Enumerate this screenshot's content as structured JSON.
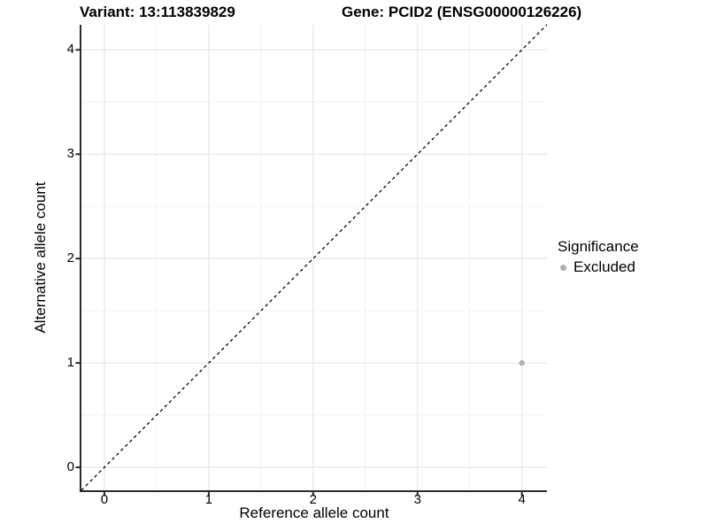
{
  "header": {
    "variant_title": "Variant: 13:113839829",
    "gene_title": "Gene: PCID2 (ENSG00000126226)"
  },
  "chart_data": {
    "type": "scatter",
    "xlabel": "Reference allele count",
    "ylabel": "Alternative allele count",
    "xlim": [
      -0.22,
      4.24
    ],
    "ylim": [
      -0.22,
      4.24
    ],
    "xticks": [
      0,
      1,
      2,
      3,
      4
    ],
    "yticks": [
      0,
      1,
      2,
      3,
      4
    ],
    "xticks_minor": [
      0.5,
      1.5,
      2.5,
      3.5
    ],
    "yticks_minor": [
      0.5,
      1.5,
      2.5,
      3.5
    ],
    "grid": "major and minor gridlines on",
    "reference_line": {
      "type": "identity",
      "slope": 1,
      "intercept": 0,
      "style": "dashed",
      "color": "#000000"
    },
    "series": [
      {
        "name": "Excluded",
        "color": "#b1b1b1",
        "marker": "circle",
        "points": [
          {
            "x": 4,
            "y": 1
          }
        ]
      }
    ],
    "legend": {
      "title": "Significance",
      "position": "right",
      "items": [
        {
          "label": "Excluded",
          "color": "#b1b1b1"
        }
      ]
    }
  },
  "colors": {
    "background": "#ffffff",
    "axis_line": "#2b2b2b",
    "grid_major": "#e8e8e8",
    "grid_minor": "#f3f3f3",
    "text": "#000000",
    "point": "#b1b1b1"
  }
}
